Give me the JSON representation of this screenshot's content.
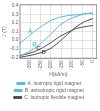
{
  "chart_data": {
    "type": "line",
    "xlabel": "H(kA/m)",
    "ylabel": "J (T)",
    "x": [
      -350,
      -320,
      -280,
      -240,
      -200,
      -160,
      -120,
      -80,
      -40,
      0
    ],
    "series": [
      {
        "name": "A  isotropic rigid magnet",
        "color": "#5bbede",
        "values": [
          -0.04,
          0.02,
          0.1,
          0.17,
          0.23,
          0.265,
          0.285,
          0.295,
          0.305,
          0.31
        ]
      },
      {
        "name": "B  anisotropic rigid magnet",
        "color": "#5bbede",
        "values": [
          -0.185,
          -0.155,
          -0.1,
          -0.02,
          0.07,
          0.17,
          0.235,
          0.275,
          0.305,
          0.32
        ]
      },
      {
        "name": "C  isotropic flexible magnet",
        "color": "#505050",
        "values": [
          -0.18,
          -0.165,
          -0.135,
          -0.09,
          -0.03,
          0.04,
          0.09,
          0.135,
          0.155,
          0.17
        ]
      },
      {
        "color": "#505050",
        "values": [
          -0.2,
          -0.188,
          -0.168,
          -0.14,
          -0.095,
          -0.02,
          0.07,
          0.155,
          0.215,
          0.25
        ]
      }
    ],
    "xlim": [
      -350,
      20
    ],
    "ylim": [
      -0.22,
      0.42
    ],
    "xticks": [
      -300,
      -250,
      -200,
      -150,
      -100,
      -50,
      0
    ],
    "yticks": [
      -0.2,
      -0.1,
      {
        "value": 0.0,
        "label": "0.0"
      },
      0.1,
      0.2,
      0.3,
      0.4
    ],
    "grid": true,
    "legend": "bottom",
    "annotations": [
      {
        "text": "A",
        "x": -310,
        "y": 0.08,
        "color": "#5bbede"
      },
      {
        "text": "B",
        "x": -290,
        "y": -0.065,
        "color": "#5bbede"
      },
      {
        "text": "C",
        "x": -270,
        "y": -0.115,
        "color": "#505050"
      },
      {
        "text": "D",
        "x": -245,
        "y": -0.165,
        "color": "#505050"
      }
    ]
  }
}
